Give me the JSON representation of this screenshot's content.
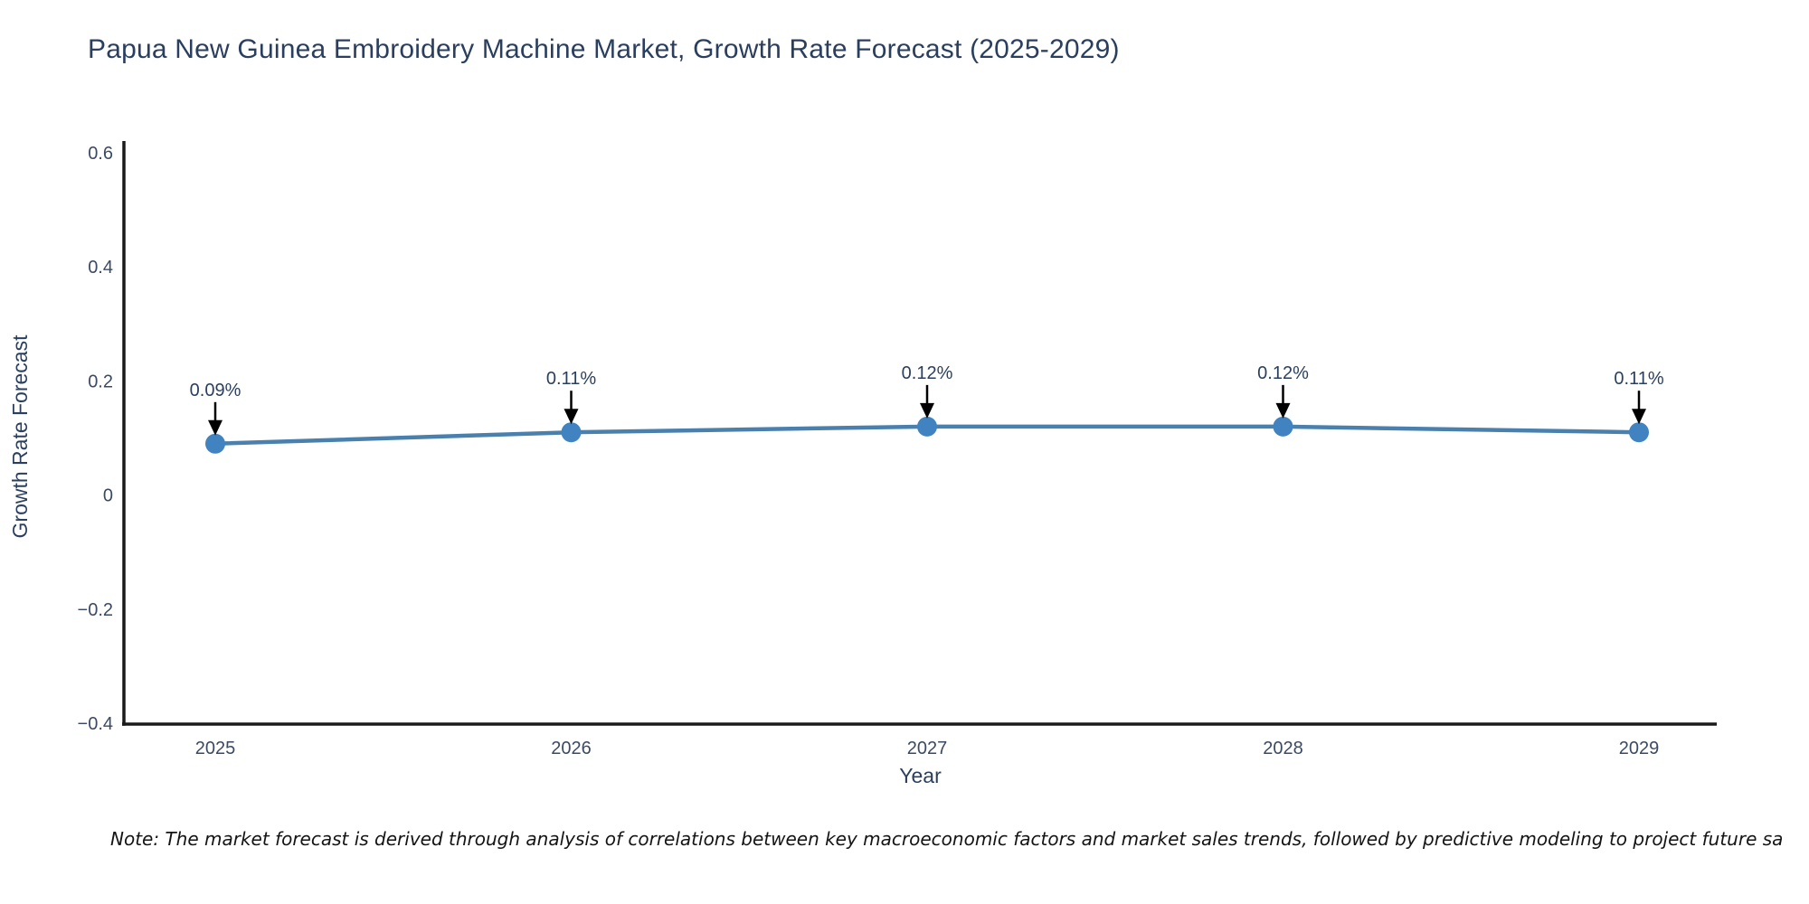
{
  "chart_data": {
    "type": "line",
    "title": "Papua New Guinea Embroidery Machine Market, Growth Rate Forecast (2025-2029)",
    "xlabel": "Year",
    "ylabel": "Growth Rate Forecast",
    "categories": [
      "2025",
      "2026",
      "2027",
      "2028",
      "2029"
    ],
    "series": [
      {
        "name": "Growth Rate Forecast",
        "values": [
          0.09,
          0.11,
          0.12,
          0.12,
          0.11
        ]
      }
    ],
    "point_labels": [
      "0.09%",
      "0.11%",
      "0.12%",
      "0.12%",
      "0.11%"
    ],
    "ylim": [
      -0.4,
      0.6
    ],
    "yticks": [
      {
        "value": 0.6,
        "label": "0.6"
      },
      {
        "value": 0.4,
        "label": "0.4"
      },
      {
        "value": 0.2,
        "label": "0.2"
      },
      {
        "value": 0,
        "label": "0"
      },
      {
        "value": -0.2,
        "label": "−0.2"
      },
      {
        "value": -0.4,
        "label": "−0.4"
      }
    ],
    "grid": false,
    "legend": false,
    "annotation_style": "down-arrow",
    "colors": {
      "line": "#4a80ae",
      "marker": "#4183c0",
      "axis": "#1a1a1a",
      "annotation_arrow": "#000000",
      "title_text": "#2a3f5f",
      "tick_text": "#3b4a63"
    }
  },
  "note": {
    "text": "Note: The market forecast is derived through analysis of correlations between key macroeconomic factors and market sales trends, followed by predictive modeling to project future sa"
  }
}
